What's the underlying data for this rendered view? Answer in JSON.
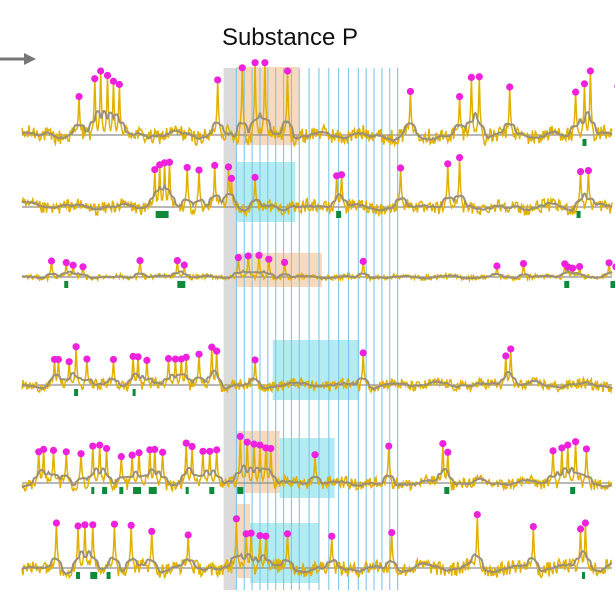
{
  "chart_data": {
    "type": "line",
    "title": "Substance P",
    "xlabel": "",
    "ylabel": "",
    "x_range": [
      0,
      600
    ],
    "y_range": [
      0,
      1
    ],
    "grid": false,
    "legend": "none",
    "colors": {
      "raw_trace": "#e2b100",
      "smoothed_trace": "#9a8f7a",
      "baseline": "#8e8e8e",
      "peak_marker": "#ee22dd",
      "event_marker": "#0e8a3a",
      "stimulus_band": "#cfcfcf",
      "stimulus_lines": "#7ec6ea",
      "response_orange": "#f8cfae",
      "response_cyan": "#9fe6ef",
      "arrow": "#777777"
    },
    "stimulus": {
      "band": [
        205,
        218
      ],
      "pulse_times": [
        218,
        226,
        234,
        242,
        250,
        258,
        266,
        274,
        282,
        292,
        302,
        312,
        322,
        332,
        342,
        350,
        358,
        366,
        374,
        382
      ]
    },
    "series": [
      {
        "row": 1,
        "peaks": [
          [
            58,
            0.6
          ],
          [
            74,
            0.88
          ],
          [
            80,
            1.0
          ],
          [
            87,
            0.93
          ],
          [
            93,
            0.84
          ],
          [
            99,
            0.79
          ],
          [
            199,
            0.86
          ],
          [
            224,
            1.05
          ],
          [
            237,
            1.13
          ],
          [
            247,
            1.13
          ],
          [
            270,
            1.0
          ],
          [
            395,
            0.68
          ],
          [
            445,
            0.6
          ],
          [
            457,
            0.9
          ],
          [
            465,
            0.91
          ],
          [
            496,
            0.75
          ],
          [
            563,
            0.67
          ],
          [
            572,
            0.8
          ],
          [
            578,
            1.0
          ],
          [
            606,
            0.76
          ]
        ],
        "events": [
          [
            572,
            4
          ]
        ],
        "response_orange": [
          218,
          282
        ],
        "response_cyan": null
      },
      {
        "row": 2,
        "peaks": [
          [
            135,
            0.72
          ],
          [
            140,
            0.81
          ],
          [
            145,
            0.85
          ],
          [
            150,
            0.86
          ],
          [
            168,
            0.76
          ],
          [
            180,
            0.71
          ],
          [
            196,
            0.8
          ],
          [
            210,
            0.77
          ],
          [
            213,
            0.55
          ],
          [
            237,
            0.57
          ],
          [
            320,
            0.6
          ],
          [
            325,
            0.62
          ],
          [
            385,
            0.75
          ],
          [
            433,
            0.83
          ],
          [
            445,
            0.95
          ],
          [
            568,
            0.68
          ],
          [
            576,
            0.7
          ]
        ],
        "events": [
          [
            140,
            8
          ],
          [
            145,
            8
          ],
          [
            322,
            5
          ],
          [
            566,
            4
          ]
        ],
        "response_orange": null,
        "response_cyan": [
          218,
          278
        ]
      },
      {
        "row": 3,
        "peaks": [
          [
            30,
            0.8
          ],
          [
            45,
            0.72
          ],
          [
            52,
            0.59
          ],
          [
            62,
            0.51
          ],
          [
            120,
            0.82
          ],
          [
            158,
            0.82
          ],
          [
            165,
            0.6
          ],
          [
            220,
            0.97
          ],
          [
            230,
            1.05
          ],
          [
            241,
            1.08
          ],
          [
            251,
            0.89
          ],
          [
            267,
            0.73
          ],
          [
            347,
            0.78
          ],
          [
            483,
            0.55
          ],
          [
            510,
            0.67
          ],
          [
            552,
            0.66
          ],
          [
            555,
            0.51
          ],
          [
            560,
            0.44
          ],
          [
            567,
            0.52
          ],
          [
            597,
            0.71
          ],
          [
            604,
            0.51
          ]
        ],
        "events": [
          [
            45,
            4
          ],
          [
            162,
            8
          ],
          [
            554,
            5
          ],
          [
            601,
            5
          ]
        ],
        "response_orange": [
          218,
          305
        ],
        "response_cyan": null
      },
      {
        "row": 4,
        "peaks": [
          [
            33,
            0.58
          ],
          [
            37,
            0.58
          ],
          [
            48,
            0.53
          ],
          [
            55,
            0.87
          ],
          [
            66,
            0.59
          ],
          [
            93,
            0.58
          ],
          [
            113,
            0.65
          ],
          [
            118,
            0.64
          ],
          [
            127,
            0.56
          ],
          [
            149,
            0.6
          ],
          [
            156,
            0.59
          ],
          [
            162,
            0.59
          ],
          [
            167,
            0.63
          ],
          [
            180,
            0.7
          ],
          [
            193,
            0.86
          ],
          [
            198,
            0.77
          ],
          [
            237,
            0.57
          ],
          [
            347,
            0.73
          ],
          [
            492,
            0.66
          ],
          [
            497,
            0.82
          ]
        ],
        "events": [
          [
            55,
            4
          ],
          [
            114,
            3
          ]
        ],
        "response_orange": null,
        "response_cyan": [
          255,
          343
        ]
      },
      {
        "row": 5,
        "peaks": [
          [
            17,
            0.65
          ],
          [
            22,
            0.7
          ],
          [
            32,
            0.68
          ],
          [
            45,
            0.65
          ],
          [
            60,
            0.61
          ],
          [
            72,
            0.77
          ],
          [
            79,
            0.79
          ],
          [
            86,
            0.72
          ],
          [
            101,
            0.55
          ],
          [
            112,
            0.58
          ],
          [
            119,
            0.63
          ],
          [
            130,
            0.69
          ],
          [
            135,
            0.7
          ],
          [
            143,
            0.64
          ],
          [
            167,
            0.83
          ],
          [
            173,
            0.76
          ],
          [
            184,
            0.66
          ],
          [
            191,
            0.66
          ],
          [
            198,
            0.69
          ],
          [
            222,
            0.97
          ],
          [
            229,
            0.85
          ],
          [
            236,
            0.81
          ],
          [
            242,
            0.79
          ],
          [
            248,
            0.73
          ],
          [
            253,
            0.72
          ],
          [
            298,
            0.59
          ],
          [
            373,
            0.77
          ],
          [
            428,
            0.82
          ],
          [
            433,
            0.64
          ],
          [
            540,
            0.67
          ],
          [
            549,
            0.73
          ],
          [
            555,
            0.79
          ],
          [
            563,
            0.86
          ],
          [
            574,
            0.71
          ]
        ],
        "events": [
          [
            72,
            3
          ],
          [
            84,
            5
          ],
          [
            101,
            4
          ],
          [
            117,
            8
          ],
          [
            133,
            8
          ],
          [
            168,
            3
          ],
          [
            193,
            5
          ],
          [
            222,
            6
          ],
          [
            432,
            5
          ],
          [
            560,
            5
          ]
        ],
        "response_orange": [
          218,
          262
        ],
        "response_cyan": [
          262,
          318
        ]
      },
      {
        "row": 6,
        "peaks": [
          [
            35,
            0.75
          ],
          [
            57,
            0.7
          ],
          [
            64,
            0.72
          ],
          [
            72,
            0.72
          ],
          [
            94,
            0.73
          ],
          [
            111,
            0.71
          ],
          [
            132,
            0.61
          ],
          [
            169,
            0.55
          ],
          [
            218,
            0.82
          ],
          [
            228,
            0.57
          ],
          [
            233,
            0.58
          ],
          [
            242,
            0.54
          ],
          [
            248,
            0.53
          ],
          [
            270,
            0.57
          ],
          [
            315,
            0.53
          ],
          [
            376,
            0.59
          ],
          [
            463,
            0.89
          ],
          [
            520,
            0.69
          ],
          [
            568,
            0.65
          ],
          [
            573,
            0.75
          ]
        ],
        "events": [
          [
            57,
            4
          ],
          [
            73,
            7
          ],
          [
            88,
            4
          ],
          [
            571,
            3
          ]
        ],
        "response_orange": [
          218,
          232
        ],
        "response_cyan": [
          232,
          302
        ]
      }
    ]
  }
}
